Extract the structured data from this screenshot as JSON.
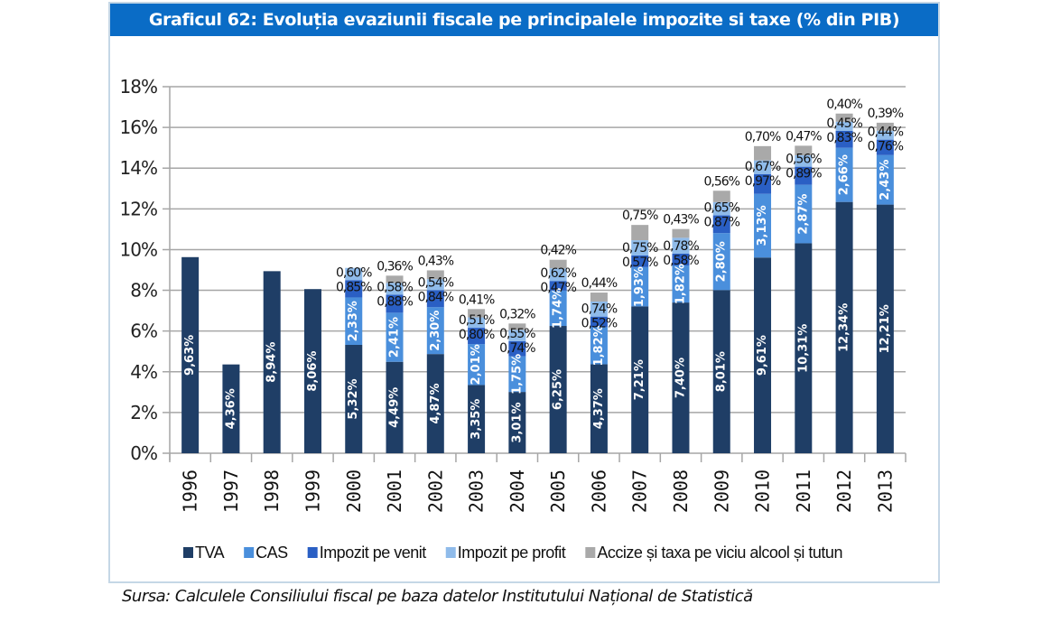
{
  "title": "Graficul 62: Evoluția evaziunii fiscale pe principalele impozite si taxe (% din PIB)",
  "source": "Sursa: Calculele Consiliului fiscal pe baza datelor Institutului Național de Statistică",
  "colors": {
    "header": "#0a6cc6",
    "TVA": "#1f3e66",
    "CAS": "#4a8fdc",
    "Impozit pe venit": "#2a5fc4",
    "Impozit pe profit": "#8fbbea",
    "Accize": "#a9a9a9"
  },
  "chart_data": {
    "type": "bar",
    "stacked": true,
    "title": "Graficul 62: Evoluția evaziunii fiscale pe principalele impozite si taxe (% din PIB)",
    "xlabel": "",
    "ylabel": "",
    "ylim": [
      0,
      18
    ],
    "yticks": [
      "0%",
      "2%",
      "4%",
      "6%",
      "8%",
      "10%",
      "12%",
      "14%",
      "16%",
      "18%"
    ],
    "grid": true,
    "legend_position": "bottom",
    "categories": [
      "1996",
      "1997",
      "1998",
      "1999",
      "2000",
      "2001",
      "2002",
      "2003",
      "2004",
      "2005",
      "2006",
      "2007",
      "2008",
      "2009",
      "2010",
      "2011",
      "2012",
      "2013"
    ],
    "series": [
      {
        "name": "TVA",
        "values": [
          9.63,
          4.36,
          8.94,
          8.06,
          5.32,
          4.49,
          4.87,
          3.35,
          3.01,
          6.25,
          4.37,
          7.21,
          7.4,
          8.01,
          9.61,
          10.31,
          12.34,
          12.21
        ],
        "labels": [
          "9,63%",
          "4,36%",
          "8,94%",
          "8,06%",
          "5,32%",
          "4,49%",
          "4,87%",
          "3,35%",
          "3,01%",
          "6,25%",
          "4,37%",
          "7,21%",
          "7,40%",
          "8,01%",
          "9,61%",
          "10,31%",
          "12,34%",
          "12,21%"
        ]
      },
      {
        "name": "CAS",
        "values": [
          null,
          null,
          null,
          null,
          2.33,
          2.41,
          2.3,
          2.01,
          1.75,
          1.74,
          1.82,
          1.93,
          1.82,
          2.8,
          3.13,
          2.87,
          2.66,
          2.43
        ],
        "labels": [
          "",
          "",
          "",
          "",
          "2,33%",
          "2,41%",
          "2,30%",
          "2,01%",
          "1,75%",
          "1,74%",
          "1,82%",
          "1,93%",
          "1,82%",
          "2,80%",
          "3,13%",
          "2,87%",
          "2,66%",
          "2,43%"
        ]
      },
      {
        "name": "Impozit pe venit",
        "values": [
          null,
          null,
          null,
          null,
          0.85,
          0.88,
          0.84,
          0.8,
          0.74,
          0.47,
          0.52,
          0.57,
          0.58,
          0.87,
          0.97,
          0.89,
          0.83,
          0.76
        ],
        "labels": [
          "",
          "",
          "",
          "",
          "0,85%",
          "0,88%",
          "0,84%",
          "0,80%",
          "0,74%",
          "0,47%",
          "0,52%",
          "0,57%",
          "0,58%",
          "0,87%",
          "0,97%",
          "0,89%",
          "0,83%",
          "0,76%"
        ]
      },
      {
        "name": "Impozit pe profit",
        "values": [
          null,
          null,
          null,
          null,
          0.6,
          0.58,
          0.54,
          0.51,
          0.55,
          0.62,
          0.74,
          0.75,
          0.78,
          0.65,
          0.67,
          0.56,
          0.45,
          0.44
        ],
        "labels": [
          "",
          "",
          "",
          "",
          "0,60%",
          "0,58%",
          "0,54%",
          "0,51%",
          "0,55%",
          "0,62%",
          "0,74%",
          "0,75%",
          "0,78%",
          "0,65%",
          "0,67%",
          "0,56%",
          "0,45%",
          "0,44%"
        ]
      },
      {
        "name": "Accize și taxa pe viciu alcool și tutun",
        "values": [
          null,
          null,
          null,
          null,
          null,
          0.36,
          0.43,
          0.41,
          0.32,
          0.42,
          0.44,
          0.75,
          0.43,
          0.56,
          0.7,
          0.47,
          0.4,
          0.39
        ],
        "labels": [
          "",
          "",
          "",
          "",
          "",
          "0,36%",
          "0,43%",
          "0,41%",
          "0,32%",
          "0,42%",
          "0,44%",
          "0,75%",
          "0,43%",
          "0,56%",
          "0,70%",
          "0,47%",
          "0,40%",
          "0,39%"
        ]
      }
    ],
    "legend": [
      "TVA",
      "CAS",
      "Impozit pe venit",
      "Impozit pe profit",
      "Accize și taxa pe viciu alcool și tutun"
    ]
  }
}
